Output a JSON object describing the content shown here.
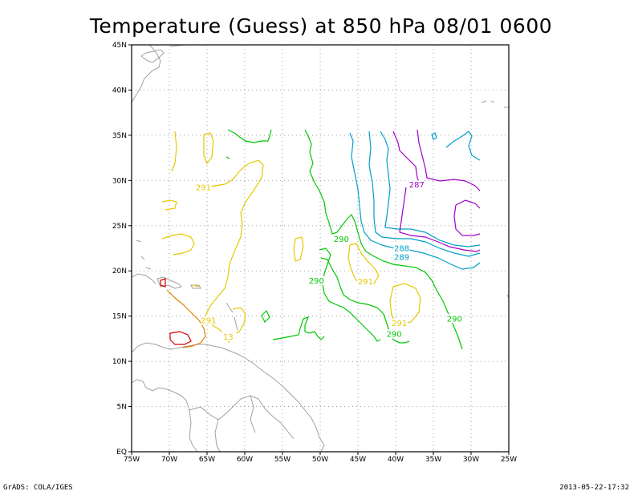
{
  "title": "Temperature (Guess) at 850 hPa 08/01 0600",
  "footer": {
    "left": "GrADS: COLA/IGES",
    "right": "2013-05-22-17:32"
  },
  "axes": {
    "lat_labels": [
      "EQ",
      "5N",
      "10N",
      "15N",
      "20N",
      "25N",
      "30N",
      "35N",
      "40N",
      "45N"
    ],
    "lon_labels": [
      "75W",
      "70W",
      "65W",
      "60W",
      "55W",
      "50W",
      "45W",
      "40W",
      "35W",
      "30W",
      "25W"
    ]
  },
  "colors": {
    "c287": "#a000c8",
    "c288": "#00a0c8",
    "c290": "#00c800",
    "c291": "#e6c800",
    "c292": "#e68200",
    "c293": "#d20000",
    "coast": "#a0a0a0",
    "grid": "#a0a0a0"
  },
  "contour_labels": [
    {
      "text": "291",
      "lon": -65.5,
      "lat": 29.0,
      "color": "#e6c800"
    },
    {
      "text": "290",
      "lon": -47.2,
      "lat": 23.3,
      "color": "#00c800"
    },
    {
      "text": "288",
      "lon": -39.2,
      "lat": 22.3,
      "color": "#00a0c8"
    },
    {
      "text": "289",
      "lon": -39.2,
      "lat": 21.3,
      "color": "#00a0c8"
    },
    {
      "text": "287",
      "lon": -37.2,
      "lat": 29.3,
      "color": "#a000c8"
    },
    {
      "text": "290",
      "lon": -50.5,
      "lat": 18.7,
      "color": "#00c800"
    },
    {
      "text": "291",
      "lon": -44.0,
      "lat": 18.6,
      "color": "#e6c800"
    },
    {
      "text": "291",
      "lon": -64.8,
      "lat": 14.3,
      "color": "#e6c800"
    },
    {
      "text": "291",
      "lon": -39.5,
      "lat": 14.0,
      "color": "#e6c800"
    },
    {
      "text": "290",
      "lon": -32.2,
      "lat": 14.5,
      "color": "#00c800"
    },
    {
      "text": "290",
      "lon": -40.2,
      "lat": 12.8,
      "color": "#00c800"
    },
    {
      "text": "13",
      "lon": -62.2,
      "lat": 12.5,
      "color": "#e6c800"
    }
  ]
}
